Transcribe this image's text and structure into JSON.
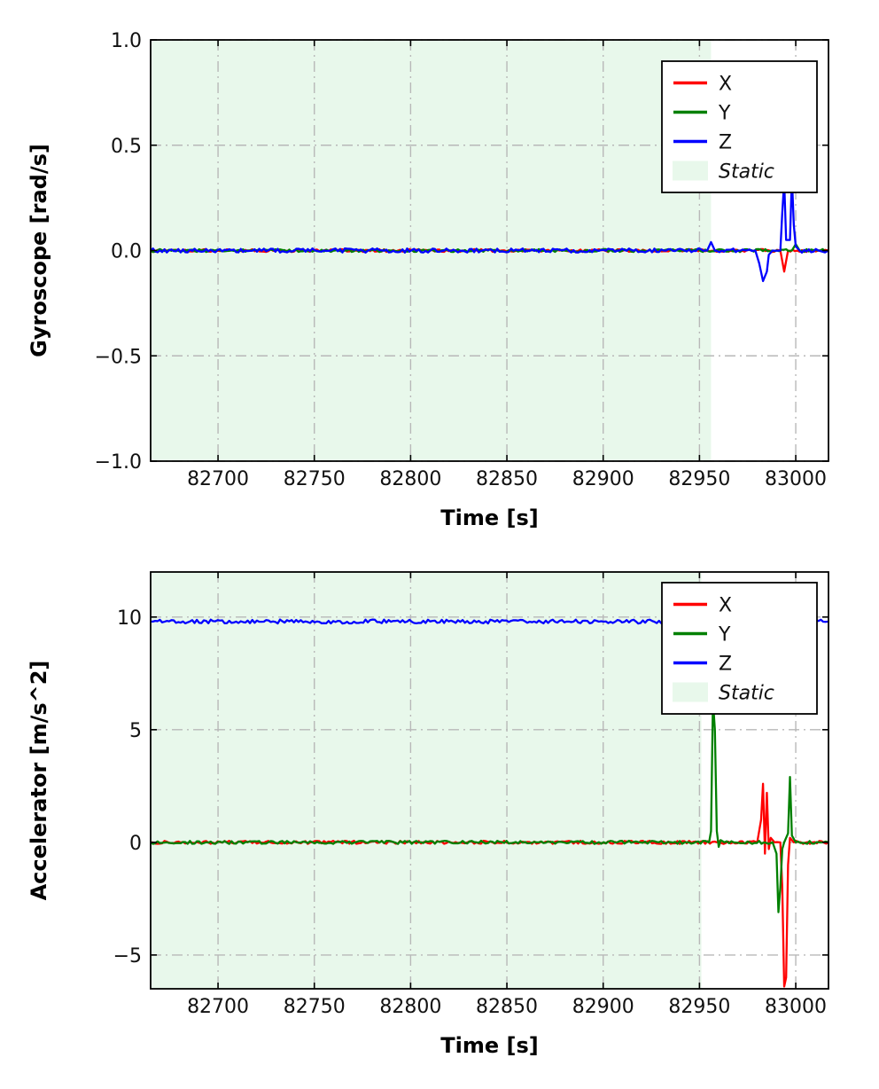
{
  "page": {
    "background": "#ffffff"
  },
  "chart_data": [
    {
      "type": "line",
      "title": "",
      "xlabel": "Time [s]",
      "ylabel": "Gyroscope [rad/s]",
      "xlim": [
        82665,
        83017
      ],
      "ylim": [
        -1.0,
        1.0
      ],
      "xticks": [
        82700,
        82750,
        82800,
        82850,
        82900,
        82950,
        83000
      ],
      "xtick_labels": [
        "82700",
        "82750",
        "82800",
        "82850",
        "82900",
        "82950",
        "83000"
      ],
      "yticks": [
        -1.0,
        -0.5,
        0.0,
        0.5,
        1.0
      ],
      "ytick_labels": [
        "−1.0",
        "−0.5",
        "0.0",
        "0.5",
        "1.0"
      ],
      "grid": "dashdot",
      "grid_color": "#b8b8b8",
      "legend_position": "upper right",
      "static_region": {
        "label": "Static",
        "x0": 82665,
        "x1": 82956,
        "color": "#e8f8eb"
      },
      "legend": [
        {
          "label": "X",
          "type": "line",
          "color": "#ff0000"
        },
        {
          "label": "Y",
          "type": "line",
          "color": "#008000"
        },
        {
          "label": "Z",
          "type": "line",
          "color": "#0000ff"
        },
        {
          "label": "Static",
          "type": "patch",
          "color": "#e8f8eb",
          "italic": true
        }
      ],
      "series": [
        {
          "name": "X",
          "color": "#ff0000",
          "noise": 0.007,
          "points": [
            [
              82665,
              0
            ],
            [
              82992,
              0
            ],
            [
              82994,
              -0.1
            ],
            [
              82996,
              0
            ],
            [
              83017,
              0
            ]
          ]
        },
        {
          "name": "Y",
          "color": "#008000",
          "noise": 0.007,
          "points": [
            [
              82665,
              0
            ],
            [
              82998,
              0
            ],
            [
              83000,
              0.03
            ],
            [
              83002,
              0
            ],
            [
              83017,
              0
            ]
          ]
        },
        {
          "name": "Z",
          "color": "#0000ff",
          "noise": 0.01,
          "points": [
            [
              82665,
              0
            ],
            [
              82954,
              0
            ],
            [
              82956,
              0.04
            ],
            [
              82958,
              0
            ],
            [
              82979,
              0
            ],
            [
              82981,
              -0.06
            ],
            [
              82983,
              -0.145
            ],
            [
              82985,
              -0.1
            ],
            [
              82986,
              -0.02
            ],
            [
              82988,
              0
            ],
            [
              82992,
              0
            ],
            [
              82993,
              0.18
            ],
            [
              82994,
              0.33
            ],
            [
              82995,
              0.05
            ],
            [
              82997,
              0.05
            ],
            [
              82998,
              0.35
            ],
            [
              82999,
              0.12
            ],
            [
              83000,
              0.02
            ],
            [
              83002,
              0
            ],
            [
              83017,
              0
            ]
          ]
        }
      ]
    },
    {
      "type": "line",
      "title": "",
      "xlabel": "Time [s]",
      "ylabel": "Accelerator [m/s^2]",
      "xlim": [
        82665,
        83017
      ],
      "ylim": [
        -6.5,
        12
      ],
      "xticks": [
        82700,
        82750,
        82800,
        82850,
        82900,
        82950,
        83000
      ],
      "xtick_labels": [
        "82700",
        "82750",
        "82800",
        "82850",
        "82900",
        "82950",
        "83000"
      ],
      "yticks": [
        -5,
        0,
        5,
        10
      ],
      "ytick_labels": [
        "−5",
        "0",
        "5",
        "10"
      ],
      "grid": "dashdot",
      "grid_color": "#b8b8b8",
      "legend_position": "upper right",
      "static_region": {
        "label": "Static",
        "x0": 82665,
        "x1": 82951,
        "color": "#e8f8eb"
      },
      "legend": [
        {
          "label": "X",
          "type": "line",
          "color": "#ff0000"
        },
        {
          "label": "Y",
          "type": "line",
          "color": "#008000"
        },
        {
          "label": "Z",
          "type": "line",
          "color": "#0000ff"
        },
        {
          "label": "Static",
          "type": "patch",
          "color": "#e8f8eb",
          "italic": true
        }
      ],
      "series": [
        {
          "name": "X",
          "color": "#ff0000",
          "noise": 0.07,
          "points": [
            [
              82665,
              0
            ],
            [
              82980,
              0
            ],
            [
              82982,
              1.0
            ],
            [
              82983,
              2.6
            ],
            [
              82984,
              -0.5
            ],
            [
              82985,
              2.2
            ],
            [
              82986,
              -0.3
            ],
            [
              82987,
              0.2
            ],
            [
              82989,
              0
            ],
            [
              82992,
              0
            ],
            [
              82993,
              -2.0
            ],
            [
              82994,
              -6.4
            ],
            [
              82995,
              -6.0
            ],
            [
              82996,
              -1.0
            ],
            [
              82997,
              0.2
            ],
            [
              82999,
              0
            ],
            [
              83017,
              0
            ]
          ]
        },
        {
          "name": "Y",
          "color": "#008000",
          "noise": 0.07,
          "points": [
            [
              82665,
              0
            ],
            [
              82955,
              0
            ],
            [
              82956,
              0.5
            ],
            [
              82957,
              6.3
            ],
            [
              82958,
              5.0
            ],
            [
              82959,
              0.5
            ],
            [
              82960,
              -0.2
            ],
            [
              82961,
              0.1
            ],
            [
              82963,
              0
            ],
            [
              82988,
              0
            ],
            [
              82990,
              -0.5
            ],
            [
              82991,
              -3.1
            ],
            [
              82992,
              -2.0
            ],
            [
              82993,
              -0.3
            ],
            [
              82994,
              0
            ],
            [
              82996,
              0.4
            ],
            [
              82997,
              2.9
            ],
            [
              82998,
              0.3
            ],
            [
              83000,
              0
            ],
            [
              83017,
              0
            ]
          ]
        },
        {
          "name": "Z",
          "color": "#0000ff",
          "noise": 0.09,
          "points": [
            [
              82665,
              9.8
            ],
            [
              83017,
              9.8
            ]
          ]
        }
      ]
    }
  ]
}
